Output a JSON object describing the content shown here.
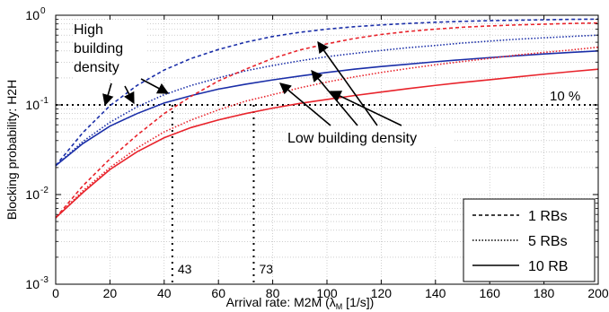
{
  "chart_data": {
    "type": "line",
    "xlabel_main": "Arrival rate: M2M (λ",
    "xlabel_sub": "M",
    "xlabel_tail": " [1/s])",
    "ylabel": "Blocking probability: H2H",
    "xlim": [
      0,
      200
    ],
    "ylim": [
      0.001,
      1
    ],
    "yscale": "log",
    "grid": true,
    "x_ticks": [
      0,
      20,
      40,
      60,
      80,
      100,
      120,
      140,
      160,
      180,
      200
    ],
    "y_ticks": [
      {
        "value": 0.001,
        "base": "10",
        "exp": "-3"
      },
      {
        "value": 0.01,
        "base": "10",
        "exp": "-2"
      },
      {
        "value": 0.1,
        "base": "10",
        "exp": "-1"
      },
      {
        "value": 1,
        "base": "10",
        "exp": "0"
      }
    ],
    "x": [
      0,
      10,
      20,
      30,
      40,
      50,
      60,
      70,
      80,
      90,
      100,
      110,
      120,
      130,
      140,
      150,
      160,
      170,
      180,
      190,
      200
    ],
    "series": [
      {
        "group": "high",
        "rb": "1",
        "color": "#1a2ea8",
        "dash": "4,3",
        "values": [
          0.021,
          0.049,
          0.098,
          0.165,
          0.245,
          0.33,
          0.415,
          0.5,
          0.58,
          0.645,
          0.7,
          0.745,
          0.78,
          0.81,
          0.835,
          0.855,
          0.87,
          0.88,
          0.89,
          0.9,
          0.905
        ]
      },
      {
        "group": "high",
        "rb": "5",
        "color": "#1a2ea8",
        "dash": "1.5,2",
        "values": [
          0.021,
          0.039,
          0.064,
          0.095,
          0.13,
          0.165,
          0.2,
          0.24,
          0.275,
          0.31,
          0.345,
          0.375,
          0.405,
          0.435,
          0.46,
          0.49,
          0.515,
          0.54,
          0.56,
          0.58,
          0.6
        ]
      },
      {
        "group": "high",
        "rb": "10",
        "color": "#1a2ea8",
        "dash": "",
        "values": [
          0.021,
          0.037,
          0.058,
          0.08,
          0.105,
          0.127,
          0.15,
          0.17,
          0.19,
          0.21,
          0.23,
          0.25,
          0.268,
          0.285,
          0.303,
          0.32,
          0.337,
          0.353,
          0.37,
          0.385,
          0.4
        ]
      },
      {
        "group": "low",
        "rb": "1",
        "color": "#e8232b",
        "dash": "4,3",
        "values": [
          0.0055,
          0.0125,
          0.025,
          0.046,
          0.08,
          0.125,
          0.185,
          0.25,
          0.33,
          0.41,
          0.48,
          0.55,
          0.61,
          0.66,
          0.7,
          0.735,
          0.76,
          0.78,
          0.795,
          0.81,
          0.82
        ]
      },
      {
        "group": "low",
        "rb": "5",
        "color": "#e8232b",
        "dash": "1.5,2",
        "values": [
          0.0055,
          0.011,
          0.02,
          0.033,
          0.05,
          0.068,
          0.088,
          0.11,
          0.13,
          0.155,
          0.18,
          0.205,
          0.23,
          0.255,
          0.28,
          0.305,
          0.33,
          0.36,
          0.385,
          0.41,
          0.44
        ]
      },
      {
        "group": "low",
        "rb": "10",
        "color": "#e8232b",
        "dash": "",
        "values": [
          0.0055,
          0.0105,
          0.019,
          0.03,
          0.043,
          0.056,
          0.068,
          0.08,
          0.092,
          0.104,
          0.115,
          0.127,
          0.139,
          0.152,
          0.165,
          0.178,
          0.191,
          0.205,
          0.22,
          0.235,
          0.25
        ]
      }
    ],
    "threshold": {
      "value": 0.1,
      "label": "10 %"
    },
    "markers": [
      {
        "x": 43,
        "label": "43"
      },
      {
        "x": 73,
        "label": "73"
      }
    ],
    "annotations": {
      "high": [
        "High",
        "building",
        "density"
      ],
      "low": "Low building density"
    },
    "legend": {
      "placement": "bottom-right",
      "entries": [
        {
          "label": "1 RBs",
          "dash": "4,3"
        },
        {
          "label": "5 RBs",
          "dash": "1.5,2"
        },
        {
          "label": "10 RB",
          "dash": ""
        }
      ]
    }
  }
}
